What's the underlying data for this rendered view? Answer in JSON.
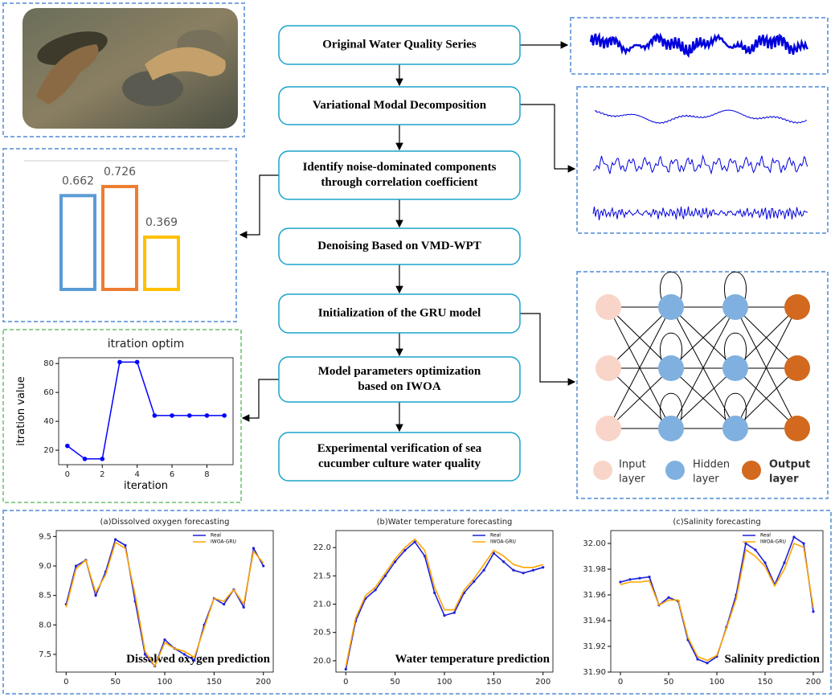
{
  "flow": {
    "steps": [
      {
        "lines": [
          "Original Water Quality Series"
        ]
      },
      {
        "lines": [
          "Variational Modal Decomposition"
        ]
      },
      {
        "lines": [
          "Identify noise-dominated components",
          "through correlation coefficient"
        ]
      },
      {
        "lines": [
          "Denoising Based on VMD-WPT"
        ]
      },
      {
        "lines": [
          "Initialization of the GRU model"
        ]
      },
      {
        "lines": [
          "Model parameters optimization",
          "based on  IWOA"
        ]
      },
      {
        "lines": [
          "Experimental verification of sea",
          "cucumber culture water quality"
        ]
      }
    ]
  },
  "network": {
    "legend": [
      {
        "text": [
          "Input",
          "layer"
        ],
        "color": "#f8d5c8"
      },
      {
        "text": [
          "Hidden",
          "layer"
        ],
        "color": "#7fb0e0"
      },
      {
        "text": [
          "Output",
          "layer"
        ],
        "color": "#d2691e"
      }
    ]
  },
  "chart_data": [
    {
      "type": "bar",
      "categories": [
        null,
        null,
        null
      ],
      "values": [
        0.662,
        0.726,
        0.369
      ],
      "colors": [
        "#5b9bd5",
        "#ed7d31",
        "#ffc000"
      ],
      "ylim": [
        0,
        0.8
      ]
    },
    {
      "type": "line",
      "title": "itration optim",
      "xlabel": "iteration",
      "ylabel": "itration value",
      "x": [
        0,
        1,
        2,
        3,
        4,
        5,
        6,
        7,
        8,
        9
      ],
      "series": [
        {
          "color": "#0000ff",
          "marker": "*",
          "values": [
            23,
            14,
            14,
            81,
            81,
            44,
            44,
            44,
            44,
            44
          ]
        }
      ],
      "xlim": [
        -0.5,
        9.5
      ],
      "ylim": [
        10,
        84
      ],
      "xticks": [
        0,
        2,
        4,
        6,
        8
      ],
      "yticks": [
        20,
        40,
        60,
        80
      ]
    },
    {
      "type": "line",
      "title": "(a)Dissolved oxygen forecasting",
      "annotation": "Dissolved oxygen prediction",
      "x": [
        0,
        10,
        20,
        30,
        40,
        50,
        60,
        70,
        80,
        90,
        100,
        110,
        120,
        130,
        140,
        150,
        160,
        170,
        180,
        190,
        200
      ],
      "series": [
        {
          "name": "Real",
          "color": "#1f1fd6",
          "marker": "*",
          "values": [
            8.35,
            9.0,
            9.1,
            8.5,
            8.9,
            9.45,
            9.35,
            8.4,
            7.5,
            7.3,
            7.75,
            7.6,
            7.5,
            7.4,
            8.0,
            8.45,
            8.35,
            8.6,
            8.3,
            9.3,
            9.0
          ]
        },
        {
          "name": "IWOA-GRU",
          "color": "#ffa500",
          "values": [
            8.3,
            8.95,
            9.1,
            8.55,
            8.85,
            9.4,
            9.3,
            8.5,
            7.55,
            7.3,
            7.7,
            7.6,
            7.55,
            7.45,
            7.95,
            8.45,
            8.4,
            8.6,
            8.35,
            9.25,
            9.05
          ]
        }
      ],
      "xlim": [
        -10,
        210
      ],
      "ylim": [
        7.2,
        9.6
      ],
      "xticks": [
        0,
        50,
        100,
        150,
        200
      ],
      "yticks": [
        7.5,
        {
          "value": 8,
          "label": "8.0"
        },
        8.5,
        {
          "value": 9,
          "label": "9.0"
        },
        9.5
      ]
    },
    {
      "type": "line",
      "title": "(b)Water temperature forecasting",
      "annotation": "Water temperature prediction",
      "x": [
        0,
        10,
        20,
        30,
        40,
        50,
        60,
        70,
        80,
        90,
        100,
        110,
        120,
        130,
        140,
        150,
        160,
        170,
        180,
        190,
        200
      ],
      "series": [
        {
          "name": "Real",
          "color": "#1f1fd6",
          "marker": "*",
          "values": [
            19.85,
            20.7,
            21.1,
            21.25,
            21.5,
            21.75,
            21.95,
            22.1,
            21.85,
            21.2,
            20.8,
            20.85,
            21.2,
            21.4,
            21.6,
            21.9,
            21.75,
            21.6,
            21.55,
            21.6,
            21.65
          ]
        },
        {
          "name": "IWOA-GRU",
          "color": "#ffa500",
          "values": [
            19.9,
            20.75,
            21.15,
            21.3,
            21.55,
            21.8,
            22.0,
            22.15,
            21.95,
            21.3,
            20.9,
            20.9,
            21.25,
            21.45,
            21.7,
            21.95,
            21.85,
            21.7,
            21.65,
            21.65,
            21.7
          ]
        }
      ],
      "xlim": [
        -10,
        210
      ],
      "ylim": [
        19.8,
        22.3
      ],
      "xticks": [
        0,
        50,
        100,
        150,
        200
      ],
      "yticks": [
        {
          "value": 20,
          "label": "20.0"
        },
        20.5,
        {
          "value": 21,
          "label": "21.0"
        },
        21.5,
        {
          "value": 22,
          "label": "22.0"
        }
      ]
    },
    {
      "type": "line",
      "title": "(c)Salinity forecasting",
      "annotation": "Salinity prediction",
      "x": [
        0,
        10,
        20,
        30,
        40,
        50,
        60,
        70,
        80,
        90,
        100,
        110,
        120,
        130,
        140,
        150,
        160,
        170,
        180,
        190,
        200
      ],
      "series": [
        {
          "name": "Real",
          "color": "#1f1fd6",
          "marker": "*",
          "values": [
            31.97,
            31.972,
            31.973,
            31.974,
            31.952,
            31.958,
            31.955,
            31.925,
            31.91,
            31.907,
            31.912,
            31.935,
            31.96,
            32.0,
            31.995,
            31.985,
            31.968,
            31.985,
            32.005,
            32.0,
            31.947
          ]
        },
        {
          "name": "IWOA-GRU",
          "color": "#ffa500",
          "values": [
            31.968,
            31.97,
            31.97,
            31.971,
            31.952,
            31.956,
            31.956,
            31.927,
            31.912,
            31.909,
            31.913,
            31.934,
            31.957,
            31.995,
            31.99,
            31.982,
            31.967,
            31.98,
            32.0,
            31.997,
            31.95
          ]
        }
      ],
      "xlim": [
        -10,
        210
      ],
      "ylim": [
        31.9,
        32.01
      ],
      "xticks": [
        0,
        50,
        100,
        150,
        200
      ],
      "yticks": [
        {
          "value": 31.9,
          "label": "31.90"
        },
        {
          "value": 31.92,
          "label": "31.92"
        },
        {
          "value": 31.94,
          "label": "31.94"
        },
        {
          "value": 31.96,
          "label": "31.96"
        },
        {
          "value": 31.98,
          "label": "31.98"
        },
        {
          "value": 32,
          "label": "32.00"
        }
      ]
    }
  ]
}
